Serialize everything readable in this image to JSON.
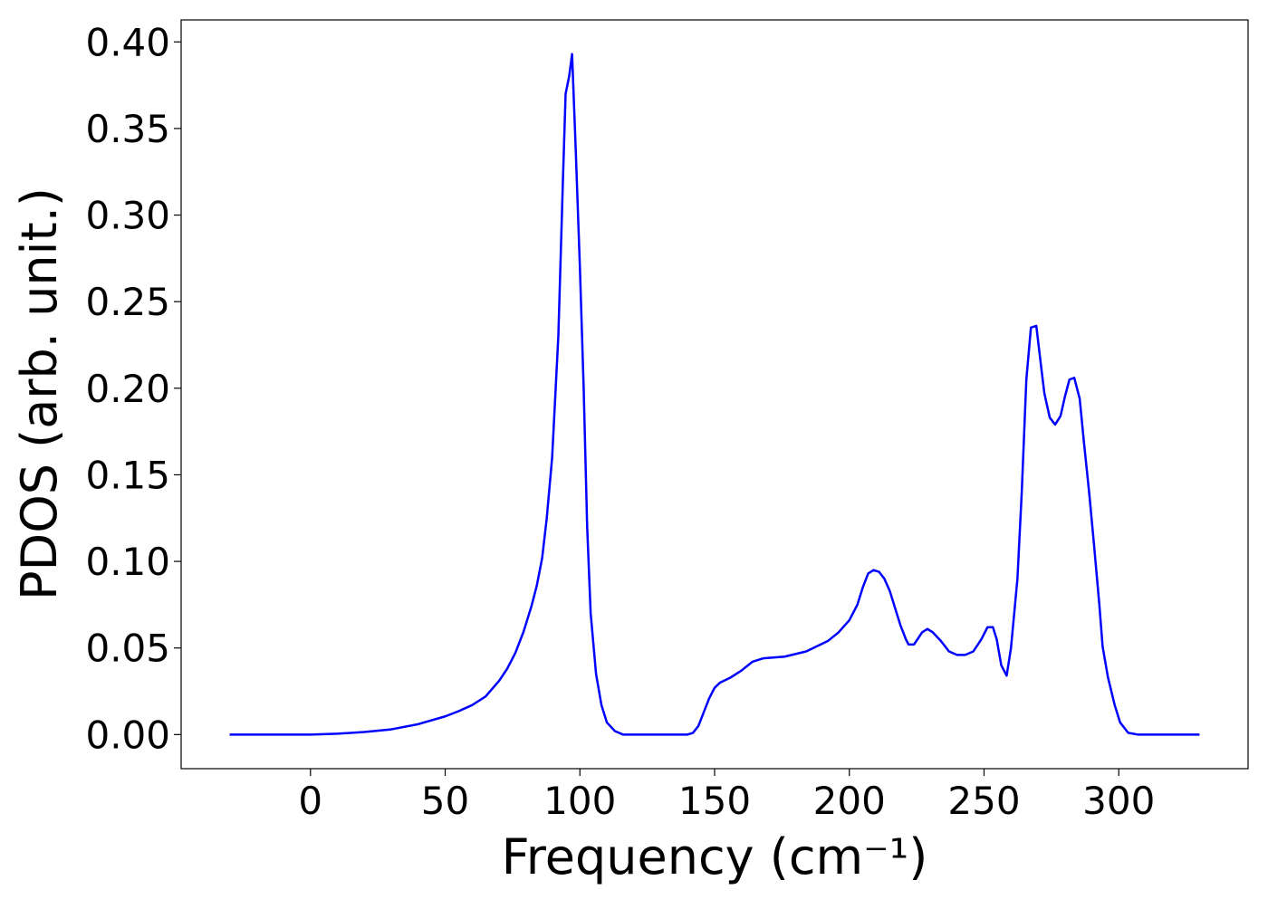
{
  "chart_data": {
    "type": "line",
    "xlabel": "Frequency (cm⁻¹)",
    "ylabel": "PDOS (arb. unit.)",
    "series": [
      {
        "name": "PDOS",
        "color": "#0000ff",
        "x": [
          -30,
          -10,
          0,
          10,
          20,
          30,
          40,
          50,
          55,
          60,
          65,
          70,
          73,
          76,
          79,
          82,
          84,
          86,
          87.7,
          89.7,
          92,
          93.7,
          94.7,
          96,
          97.1,
          98.4,
          100,
          101.4,
          102.7,
          104,
          106,
          108,
          110,
          113,
          116,
          140,
          142,
          144,
          146,
          148,
          150,
          152,
          156,
          160,
          164,
          168,
          176,
          184,
          192,
          196,
          200,
          203,
          205,
          207,
          209,
          211,
          213,
          215,
          217,
          219,
          221,
          222,
          224,
          227,
          229,
          231,
          234,
          237,
          240,
          243,
          246,
          249,
          251.3,
          253.3,
          254.7,
          256.4,
          258.4,
          260,
          262.4,
          264,
          265.7,
          267.4,
          269.4,
          271,
          272.4,
          274.4,
          276.4,
          278.4,
          280,
          281.7,
          283.5,
          285.5,
          287,
          289,
          290.8,
          292.8,
          294,
          296,
          298.5,
          300.5,
          303.5,
          307,
          330
        ],
        "values": [
          0,
          0,
          0,
          0.0005,
          0.0015,
          0.003,
          0.006,
          0.0105,
          0.0135,
          0.017,
          0.022,
          0.031,
          0.038,
          0.047,
          0.059,
          0.074,
          0.086,
          0.102,
          0.125,
          0.16,
          0.23,
          0.32,
          0.37,
          0.38,
          0.393,
          0.34,
          0.27,
          0.2,
          0.12,
          0.07,
          0.035,
          0.017,
          0.007,
          0.002,
          0,
          0,
          0.001,
          0.005,
          0.013,
          0.021,
          0.027,
          0.03,
          0.033,
          0.037,
          0.042,
          0.044,
          0.045,
          0.048,
          0.054,
          0.059,
          0.066,
          0.075,
          0.085,
          0.093,
          0.095,
          0.094,
          0.09,
          0.083,
          0.073,
          0.063,
          0.055,
          0.052,
          0.052,
          0.059,
          0.061,
          0.059,
          0.054,
          0.048,
          0.046,
          0.046,
          0.048,
          0.055,
          0.062,
          0.062,
          0.055,
          0.04,
          0.034,
          0.05,
          0.09,
          0.14,
          0.205,
          0.235,
          0.236,
          0.215,
          0.197,
          0.183,
          0.179,
          0.184,
          0.195,
          0.205,
          0.206,
          0.194,
          0.17,
          0.14,
          0.11,
          0.075,
          0.051,
          0.033,
          0.017,
          0.007,
          0.001,
          0,
          0
        ]
      }
    ],
    "xlim": [
      -48,
      348
    ],
    "xticks": [
      0,
      50,
      100,
      150,
      200,
      250,
      300
    ],
    "ylim": [
      -0.0197,
      0.4127
    ],
    "yticks": [
      {
        "value": 0,
        "label": "0.00"
      },
      {
        "value": 0.05,
        "label": "0.05"
      },
      {
        "value": 0.1,
        "label": "0.10"
      },
      {
        "value": 0.15,
        "label": "0.15"
      },
      {
        "value": 0.2,
        "label": "0.20"
      },
      {
        "value": 0.25,
        "label": "0.25"
      },
      {
        "value": 0.3,
        "label": "0.30"
      },
      {
        "value": 0.35,
        "label": "0.35"
      },
      {
        "value": 0.4,
        "label": "0.40"
      }
    ],
    "grid": false
  }
}
